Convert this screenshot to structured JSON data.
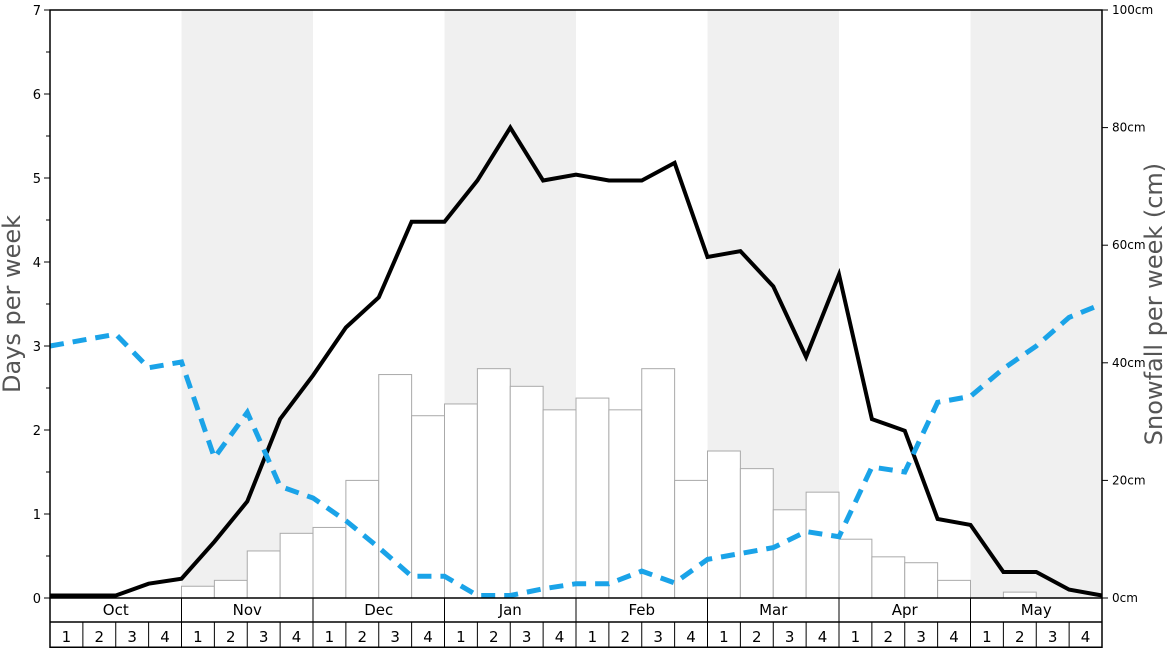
{
  "chart_data": {
    "type": "bar",
    "ylabel_left": "Days per week",
    "ylabel_right": "Snowfall per week (cm)",
    "ylim_left": [
      0,
      7
    ],
    "ylim_right": [
      0,
      100
    ],
    "months": [
      "Oct",
      "Nov",
      "Dec",
      "Jan",
      "Feb",
      "Mar",
      "Apr",
      "May"
    ],
    "week_labels": [
      "1",
      "2",
      "3",
      "4"
    ],
    "left_ticks": [
      "0",
      "1",
      "2",
      "3",
      "4",
      "5",
      "6",
      "7"
    ],
    "right_ticks": [
      "0cm",
      "20cm",
      "40cm",
      "60cm",
      "80cm",
      "100cm"
    ],
    "grid": false,
    "shaded_months": [
      "Nov",
      "Jan",
      "Mar",
      "May"
    ],
    "series": [
      {
        "kind": "bar",
        "axis": "right",
        "color": "#ffffff",
        "stroke": "#aaaaaa",
        "values": [
          0,
          0,
          0,
          0,
          2,
          3,
          8,
          11,
          12,
          20,
          38,
          31,
          33,
          39,
          36,
          32,
          34,
          32,
          39,
          20,
          25,
          22,
          15,
          18,
          10,
          7,
          6,
          3,
          0,
          1,
          0,
          0
        ]
      },
      {
        "kind": "line",
        "axis": "left",
        "color": "#000000",
        "dashed": false,
        "values": [
          0.03,
          0.03,
          0.03,
          0.17,
          0.23,
          0.67,
          1.15,
          2.13,
          2.65,
          3.22,
          3.58,
          4.48,
          4.48,
          4.97,
          5.6,
          4.97,
          5.04,
          4.97,
          4.97,
          5.18,
          4.06,
          4.13,
          3.71,
          2.87,
          3.85,
          2.13,
          1.99,
          0.94,
          0.87,
          0.31,
          0.31,
          0.1,
          0.03
        ]
      },
      {
        "kind": "line",
        "axis": "left",
        "color": "#1aa3e8",
        "dashed": true,
        "values": [
          3.0,
          3.07,
          3.14,
          2.74,
          2.81,
          1.67,
          2.21,
          1.33,
          1.19,
          0.92,
          0.6,
          0.26,
          0.26,
          0.03,
          0.03,
          0.11,
          0.17,
          0.17,
          0.32,
          0.18,
          0.46,
          0.53,
          0.6,
          0.79,
          0.73,
          1.56,
          1.5,
          2.33,
          2.4,
          2.73,
          3.0,
          3.34,
          3.5
        ]
      }
    ]
  }
}
